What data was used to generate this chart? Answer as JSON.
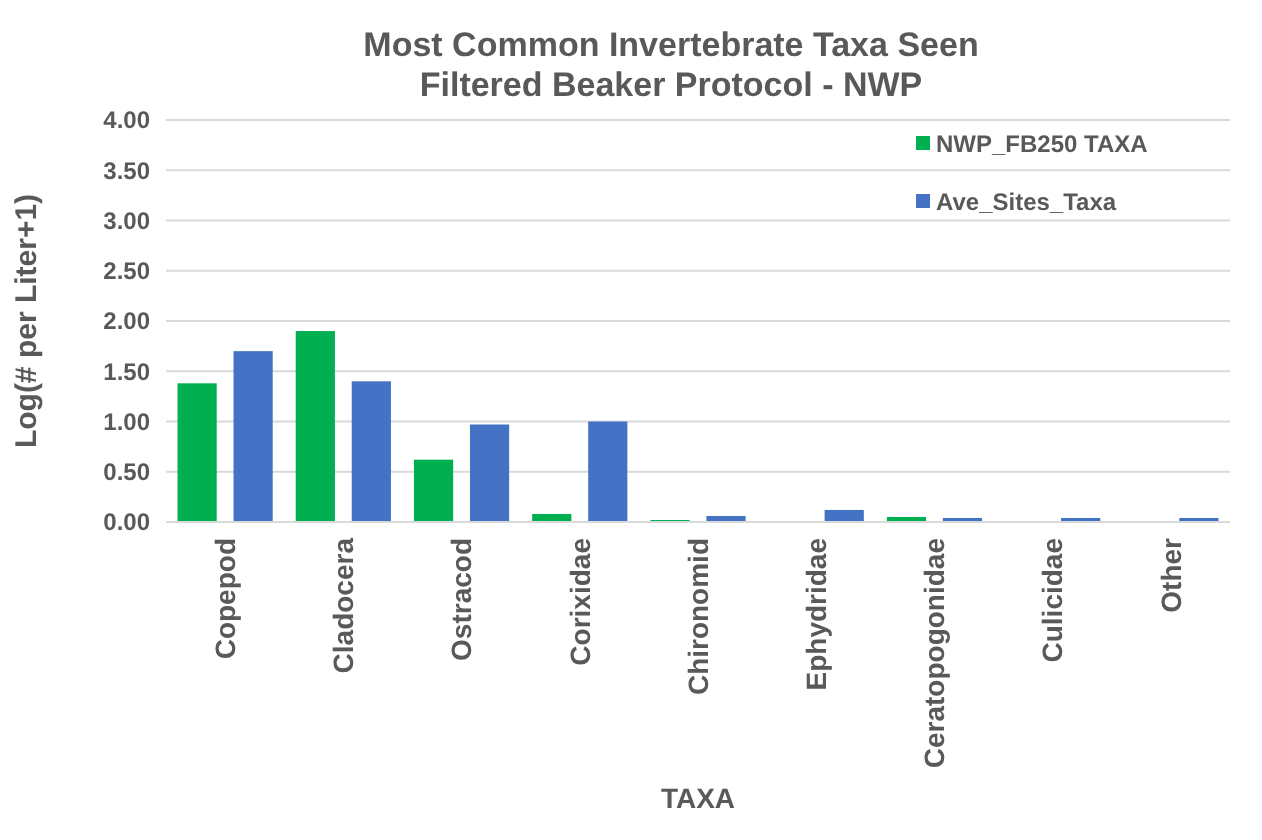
{
  "chart_data": {
    "type": "bar",
    "title": "Most Common Invertebrate Taxa Seen\nFiltered Beaker Protocol - NWP",
    "xlabel": "TAXA",
    "ylabel": "Log(# per Liter+1)",
    "categories": [
      "Copepod",
      "Cladocera",
      "Ostracod",
      "Corixidae",
      "Chironomid",
      "Ephydridae",
      "Ceratopogonidae",
      "Culicidae",
      "Other"
    ],
    "series": [
      {
        "name": "NWP_FB250 TAXA",
        "color": "#00b050",
        "values": [
          1.38,
          1.9,
          0.62,
          0.08,
          0.02,
          0,
          0.05,
          0,
          0
        ]
      },
      {
        "name": "Ave_Sites_Taxa",
        "color": "#4472c4",
        "values": [
          1.7,
          1.4,
          0.97,
          1.0,
          0.06,
          0.12,
          0.04,
          0.04,
          0.04
        ]
      }
    ],
    "ylim": [
      0,
      4
    ],
    "yticks": [
      {
        "value": 0,
        "label": "0.00"
      },
      {
        "value": 0.5,
        "label": "0.50"
      },
      {
        "value": 1,
        "label": "1.00"
      },
      {
        "value": 1.5,
        "label": "1.50"
      },
      {
        "value": 2,
        "label": "2.00"
      },
      {
        "value": 2.5,
        "label": "2.50"
      },
      {
        "value": 3,
        "label": "3.00"
      },
      {
        "value": 3.5,
        "label": "3.50"
      },
      {
        "value": 4,
        "label": "4.00"
      }
    ],
    "grid": "y",
    "legend": "top right"
  }
}
